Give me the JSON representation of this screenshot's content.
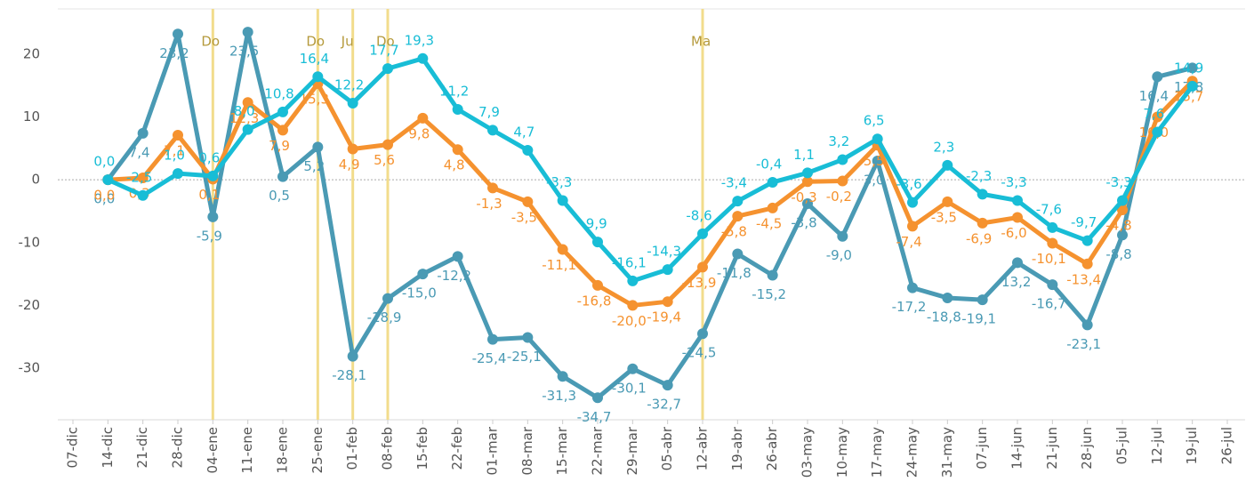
{
  "chart_data": {
    "type": "line",
    "categories": [
      "07-dic",
      "14-dic",
      "21-dic",
      "28-dic",
      "04-ene",
      "11-ene",
      "18-ene",
      "25-ene",
      "01-feb",
      "08-feb",
      "15-feb",
      "22-feb",
      "01-mar",
      "08-mar",
      "15-mar",
      "22-mar",
      "29-mar",
      "05-abr",
      "12-abr",
      "19-abr",
      "26-abr",
      "03-may",
      "10-may",
      "17-may",
      "24-may",
      "31-may",
      "07-jun",
      "14-jun",
      "21-jun",
      "28-jun",
      "05-jul",
      "12-jul",
      "19-jul",
      "26-jul"
    ],
    "series": [
      {
        "color": "#4a9ab4",
        "values": [
          null,
          0.0,
          7.4,
          23.2,
          -5.9,
          23.5,
          0.5,
          5.2,
          -28.1,
          -18.9,
          -15.0,
          -12.2,
          -25.4,
          -25.1,
          -31.3,
          -34.7,
          -30.1,
          -32.7,
          -24.5,
          -11.8,
          -15.2,
          -3.8,
          -9.0,
          3.0,
          -17.2,
          -18.8,
          -19.1,
          -13.2,
          -16.7,
          -23.1,
          -8.8,
          16.4,
          17.8,
          null
        ],
        "value_labels": [
          null,
          "0,0",
          "7,4",
          "23,2",
          "-5,9",
          "23,5",
          "0,5",
          "5,2",
          "-28,1",
          "-18,9",
          "-15,0",
          "-12,2",
          "-25,4",
          "-25,1",
          "-31,3",
          "-34,7",
          "-30,1",
          "-32,7",
          "-24,5",
          "-11,8",
          "-15,2",
          "-3,8",
          "-9,0",
          "3,0",
          "-17,2",
          "-18,8",
          "-19,1",
          "-13,2",
          "-16,7",
          "-23,1",
          "-8,8",
          "16,4",
          "17,8",
          null
        ]
      },
      {
        "color": "#f5922f",
        "values": [
          null,
          0.0,
          0.3,
          7.1,
          0.1,
          12.3,
          7.9,
          15.3,
          4.9,
          5.6,
          9.8,
          4.8,
          -1.3,
          -3.5,
          -11.1,
          -16.8,
          -20.0,
          -19.4,
          -13.9,
          -5.8,
          -4.5,
          -0.3,
          -0.2,
          5.5,
          -7.4,
          -3.5,
          -6.9,
          -6.0,
          -10.1,
          -13.4,
          -4.8,
          10.0,
          15.7,
          null
        ],
        "value_labels": [
          null,
          "0,0",
          "0,3",
          "7,1",
          "0,1",
          "12,3",
          "7,9",
          "15,3",
          "4,9",
          "5,6",
          "9,8",
          "4,8",
          "-1,3",
          "-3,5",
          "-11,1",
          "-16,8",
          "-20,0",
          "-19,4",
          "-13,9",
          "-5,8",
          "-4,5",
          "-0,3",
          "-0,2",
          "5,5",
          "-7,4",
          "-3,5",
          "-6,9",
          "-6,0",
          "-10,1",
          "-13,4",
          "-4,8",
          "10,0",
          "15,7",
          null
        ]
      },
      {
        "color": "#18bdd6",
        "values": [
          null,
          0.0,
          -2.5,
          1.0,
          0.6,
          8.0,
          10.8,
          16.4,
          12.2,
          17.7,
          19.3,
          11.2,
          7.9,
          4.7,
          -3.3,
          -9.9,
          -16.1,
          -14.3,
          -8.6,
          -3.4,
          -0.4,
          1.1,
          3.2,
          6.5,
          -3.6,
          2.3,
          -2.3,
          -3.3,
          -7.6,
          -9.7,
          -3.3,
          7.6,
          14.9,
          null
        ],
        "value_labels": [
          null,
          "0,0",
          "-2,5",
          "1,0",
          "0,6",
          "8,0",
          "10,8",
          "16,4",
          "12,2",
          "17,7",
          "19,3",
          "11,2",
          "7,9",
          "4,7",
          "-3,3",
          "-9,9",
          "-16,1",
          "-14,3",
          "-8,6",
          "-3,4",
          "-0,4",
          "1,1",
          "3,2",
          "6,5",
          "-3,6",
          "2,3",
          "-2,3",
          "-3,3",
          "-7,6",
          "-9,7",
          "-3,3",
          "7,6",
          "14,9",
          null
        ]
      }
    ],
    "annotations": [
      {
        "x": "04-ene",
        "label": "Do"
      },
      {
        "x": "25-ene",
        "label": "Do"
      },
      {
        "x": "01-feb",
        "label": "Ju"
      },
      {
        "x": "08-feb",
        "label": "Do"
      },
      {
        "x": "12-abr",
        "label": "Ma"
      }
    ],
    "ylim": [
      -38.2,
      27.2
    ],
    "yticks": [
      -30,
      -20,
      -10,
      0,
      10,
      20
    ],
    "zero_line": true
  }
}
